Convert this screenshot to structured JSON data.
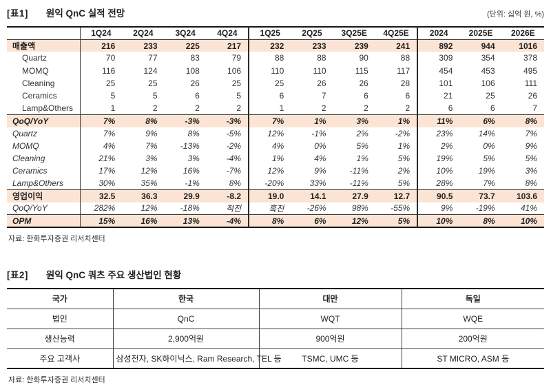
{
  "table1": {
    "tag": "[표1]",
    "title": "원익 QnC 실적 전망",
    "unit": "(단위: 십억 원, %)",
    "columns": [
      "1Q24",
      "2Q24",
      "3Q24",
      "4Q24",
      "1Q25",
      "2Q25",
      "3Q25E",
      "4Q25E",
      "2024",
      "2025E",
      "2026E"
    ],
    "rows": [
      {
        "label": "매출액",
        "kind": "section",
        "values": [
          "216",
          "233",
          "225",
          "217",
          "232",
          "233",
          "239",
          "241",
          "892",
          "944",
          "1016"
        ]
      },
      {
        "label": "Quartz",
        "kind": "sub",
        "values": [
          "70",
          "77",
          "83",
          "79",
          "88",
          "88",
          "90",
          "88",
          "309",
          "354",
          "378"
        ]
      },
      {
        "label": "MOMQ",
        "kind": "sub",
        "values": [
          "116",
          "124",
          "108",
          "106",
          "110",
          "110",
          "115",
          "117",
          "454",
          "453",
          "495"
        ]
      },
      {
        "label": "Cleaning",
        "kind": "sub",
        "values": [
          "25",
          "25",
          "26",
          "25",
          "25",
          "26",
          "26",
          "28",
          "101",
          "106",
          "111"
        ]
      },
      {
        "label": "Ceramics",
        "kind": "sub",
        "values": [
          "5",
          "5",
          "6",
          "5",
          "6",
          "7",
          "6",
          "6",
          "21",
          "25",
          "26"
        ]
      },
      {
        "label": "Lamp&Others",
        "kind": "sub",
        "values": [
          "1",
          "2",
          "2",
          "2",
          "1",
          "2",
          "2",
          "2",
          "6",
          "6",
          "7"
        ]
      },
      {
        "label": "QoQ/YoY",
        "kind": "section-italic",
        "rule": true,
        "values": [
          "7%",
          "8%",
          "-3%",
          "-3%",
          "7%",
          "1%",
          "3%",
          "1%",
          "11%",
          "6%",
          "8%"
        ]
      },
      {
        "label": "Quartz",
        "kind": "sub-italic",
        "values": [
          "7%",
          "9%",
          "8%",
          "-5%",
          "12%",
          "-1%",
          "2%",
          "-2%",
          "23%",
          "14%",
          "7%"
        ]
      },
      {
        "label": "MOMQ",
        "kind": "sub-italic",
        "values": [
          "4%",
          "7%",
          "-13%",
          "-2%",
          "4%",
          "0%",
          "5%",
          "1%",
          "2%",
          "0%",
          "9%"
        ]
      },
      {
        "label": "Cleaning",
        "kind": "sub-italic",
        "values": [
          "21%",
          "3%",
          "3%",
          "-4%",
          "1%",
          "4%",
          "1%",
          "5%",
          "19%",
          "5%",
          "5%"
        ]
      },
      {
        "label": "Ceramics",
        "kind": "sub-italic",
        "values": [
          "17%",
          "12%",
          "16%",
          "-7%",
          "12%",
          "9%",
          "-11%",
          "2%",
          "10%",
          "19%",
          "3%"
        ]
      },
      {
        "label": "Lamp&Others",
        "kind": "sub-italic",
        "values": [
          "30%",
          "35%",
          "-1%",
          "8%",
          "-20%",
          "33%",
          "-11%",
          "5%",
          "28%",
          "7%",
          "8%"
        ]
      },
      {
        "label": "영업이익",
        "kind": "section",
        "rule": true,
        "values": [
          "32.5",
          "36.3",
          "29.9",
          "-8.2",
          "19.0",
          "14.1",
          "27.9",
          "12.7",
          "90.5",
          "73.7",
          "103.6"
        ]
      },
      {
        "label": "QoQ/YoY",
        "kind": "sub-italic",
        "values": [
          "282%",
          "12%",
          "-18%",
          "적전",
          "흑전",
          "-26%",
          "98%",
          "-55%",
          "9%",
          "-19%",
          "41%"
        ]
      },
      {
        "label": "OPM",
        "kind": "section-italic",
        "rule": true,
        "values": [
          "15%",
          "16%",
          "13%",
          "-4%",
          "8%",
          "6%",
          "12%",
          "5%",
          "10%",
          "8%",
          "10%"
        ]
      }
    ],
    "source": "자료: 한화투자증권 리서치센터"
  },
  "table2": {
    "tag": "[표2]",
    "title": "원익 QnC 쿼츠 주요 생산법인 현황",
    "header": [
      "국가",
      "한국",
      "대만",
      "독일"
    ],
    "rows": [
      {
        "label": "법인",
        "values": [
          "QnC",
          "WQT",
          "WQE"
        ]
      },
      {
        "label": "생산능력",
        "values": [
          "2,900억원",
          "900억원",
          "200억원"
        ]
      },
      {
        "label": "주요 고객사",
        "values": [
          "삼성전자, SK하이닉스, Ram Research, TEL 등",
          "TSMC, UMC 등",
          "ST MICRO, ASM 등"
        ]
      }
    ],
    "source": "자료: 한화투자증권 리서치센터"
  },
  "colors": {
    "highlight_row": "#fce4d4",
    "border_heavy": "#161616",
    "border_light": "#3d3d3d"
  }
}
